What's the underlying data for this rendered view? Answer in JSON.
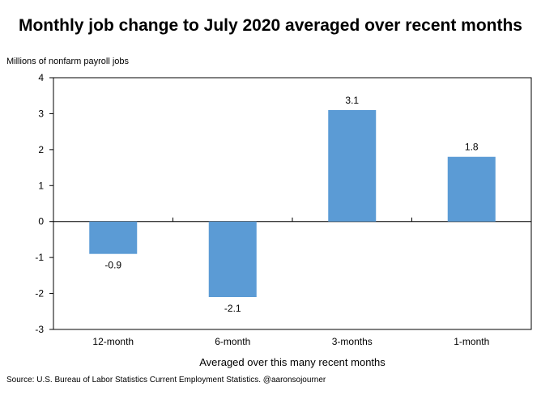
{
  "chart_data": {
    "type": "bar",
    "title": "Monthly job change to July 2020 averaged over recent months",
    "ylabel": "Millions of nonfarm payroll jobs",
    "xlabel": "Averaged over this many recent months",
    "categories": [
      "12-month",
      "6-month",
      "3-months",
      "1-month"
    ],
    "values": [
      -0.9,
      -2.1,
      3.1,
      1.8
    ],
    "value_labels": [
      "-0.9",
      "-2.1",
      "3.1",
      "1.8"
    ],
    "ylim": [
      -3,
      4
    ],
    "yticks": [
      4,
      3,
      2,
      1,
      0,
      -1,
      -2,
      -3
    ],
    "grid": false,
    "bar_color": "#5B9BD5"
  },
  "source": "Source: U.S. Bureau of Labor Statistics Current Employment Statistics. @aaronsojourner"
}
